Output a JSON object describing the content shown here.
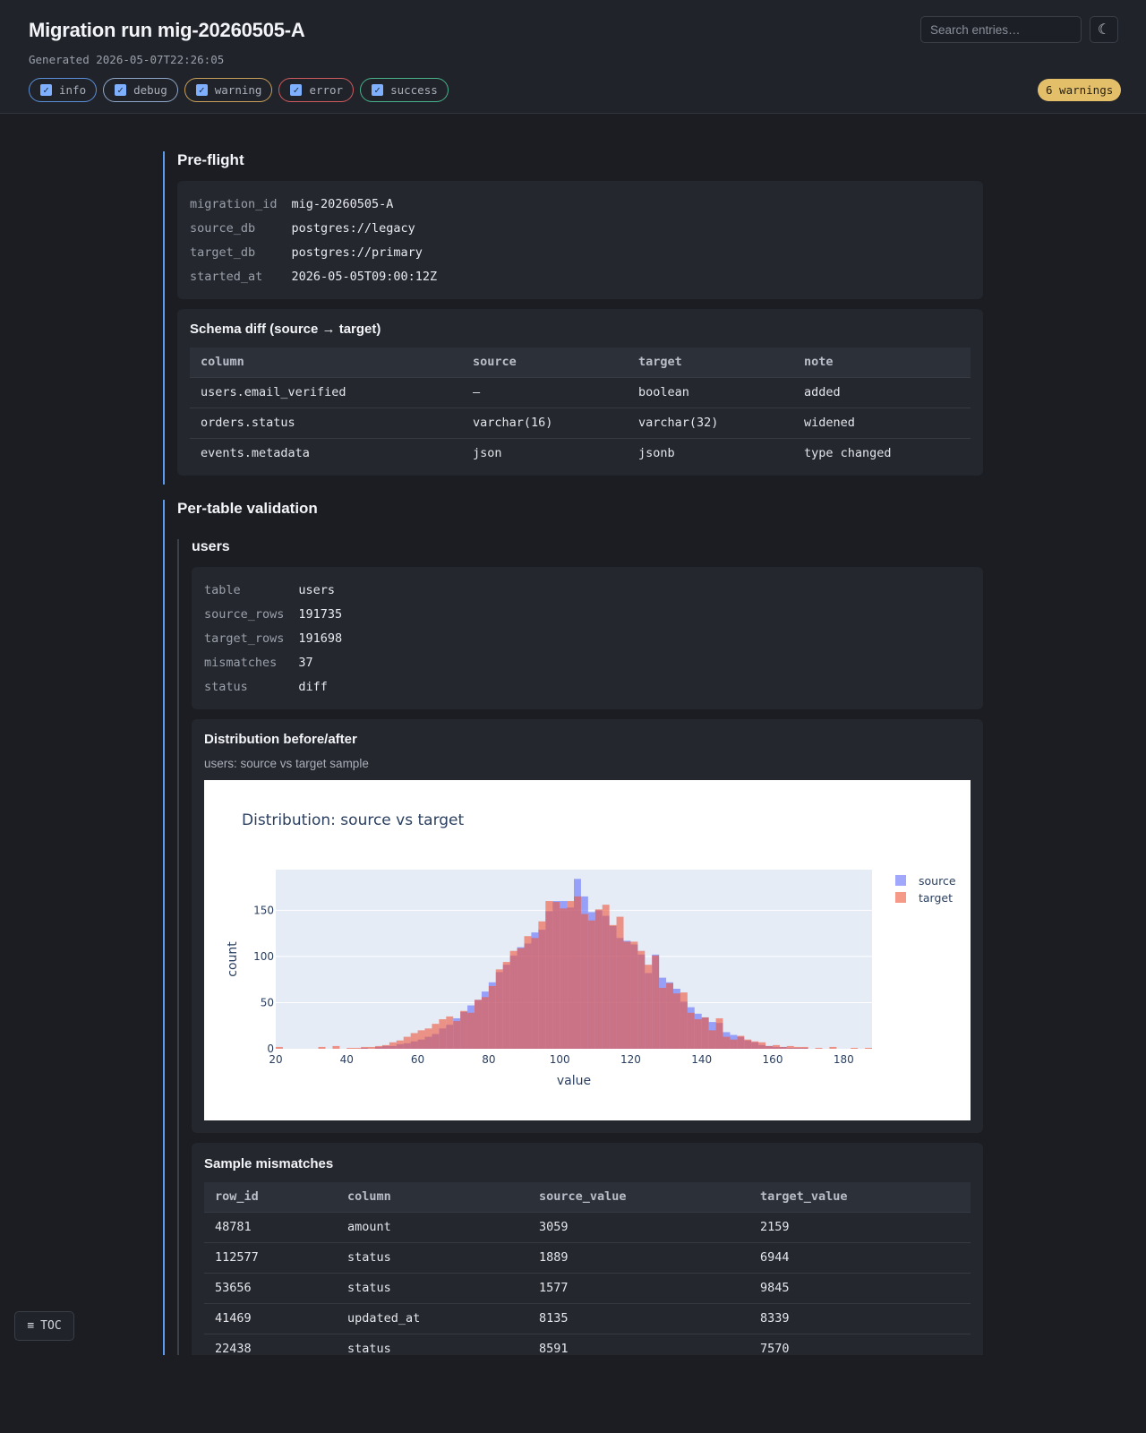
{
  "header": {
    "title": "Migration run mig-20260505-A",
    "generated": "Generated 2026-05-07T22:26:05",
    "search_placeholder": "Search entries…",
    "theme_toggle": "☾",
    "warnings_badge": "6 warnings",
    "filters": [
      {
        "label": "info",
        "checked": true,
        "color": "#5b8fd8"
      },
      {
        "label": "debug",
        "checked": true,
        "color": "#8fa7c9"
      },
      {
        "label": "warning",
        "checked": true,
        "color": "#c8a05a"
      },
      {
        "label": "error",
        "checked": true,
        "color": "#d05a5e"
      },
      {
        "label": "success",
        "checked": true,
        "color": "#49b28a"
      }
    ]
  },
  "preflight": {
    "title": "Pre-flight",
    "kv": [
      {
        "k": "migration_id",
        "v": "mig-20260505-A"
      },
      {
        "k": "source_db",
        "v": "postgres://legacy"
      },
      {
        "k": "target_db",
        "v": "postgres://primary"
      },
      {
        "k": "started_at",
        "v": "2026-05-05T09:00:12Z"
      }
    ],
    "schema_diff": {
      "title": "Schema diff (source → target)",
      "headers": [
        "column",
        "source",
        "target",
        "note"
      ],
      "rows": [
        [
          "users.email_verified",
          "—",
          "boolean",
          "added"
        ],
        [
          "orders.status",
          "varchar(16)",
          "varchar(32)",
          "widened"
        ],
        [
          "events.metadata",
          "json",
          "jsonb",
          "type changed"
        ]
      ]
    }
  },
  "validation": {
    "title": "Per-table validation",
    "users": {
      "title": "users",
      "kv": [
        {
          "k": "table",
          "v": "users"
        },
        {
          "k": "source_rows",
          "v": "191735"
        },
        {
          "k": "target_rows",
          "v": "191698"
        },
        {
          "k": "mismatches",
          "v": "37"
        },
        {
          "k": "status",
          "v": "diff"
        }
      ],
      "distribution": {
        "title": "Distribution before/after",
        "caption": "users: source vs target sample"
      },
      "mismatches": {
        "title": "Sample mismatches",
        "headers": [
          "row_id",
          "column",
          "source_value",
          "target_value"
        ],
        "rows": [
          [
            "48781",
            "amount",
            "3059",
            "2159"
          ],
          [
            "112577",
            "status",
            "1889",
            "6944"
          ],
          [
            "53656",
            "status",
            "1577",
            "9845"
          ],
          [
            "41469",
            "updated_at",
            "8135",
            "8339"
          ],
          [
            "22438",
            "status",
            "8591",
            "7570"
          ]
        ]
      }
    }
  },
  "toc": {
    "label": "TOC",
    "icon": "≡"
  },
  "chart_data": {
    "type": "bar",
    "title": "Distribution: source vs target",
    "xlabel": "value",
    "ylabel": "count",
    "xlim": [
      20,
      188
    ],
    "ylim": [
      0,
      194
    ],
    "xticks": [
      20,
      40,
      60,
      80,
      100,
      120,
      140,
      160,
      180
    ],
    "yticks": [
      0,
      50,
      100,
      150
    ],
    "bin_start": 20,
    "bin_width": 2,
    "legend_position": "top-right",
    "grid": true,
    "series": [
      {
        "name": "source",
        "color": "#636efa",
        "values": [
          0,
          0,
          0,
          0,
          0,
          0,
          0,
          0,
          0,
          0,
          0,
          0,
          1,
          0,
          2,
          3,
          3,
          5,
          6,
          8,
          10,
          13,
          16,
          22,
          26,
          33,
          40,
          47,
          53,
          62,
          72,
          83,
          91,
          101,
          110,
          114,
          126,
          129,
          149,
          160,
          160,
          153,
          184,
          165,
          148,
          150,
          144,
          133,
          120,
          117,
          113,
          102,
          82,
          102,
          77,
          72,
          65,
          51,
          45,
          38,
          34,
          29,
          28,
          18,
          15,
          13,
          9,
          7,
          4,
          3,
          2,
          2,
          1,
          1,
          1,
          0,
          0,
          0,
          0,
          0,
          0,
          0,
          0,
          0
        ]
      },
      {
        "name": "target",
        "color": "#ef553b",
        "values": [
          2,
          0,
          0,
          0,
          0,
          0,
          2,
          0,
          3,
          0,
          1,
          1,
          2,
          2,
          3,
          4,
          7,
          9,
          13,
          17,
          20,
          22,
          27,
          32,
          35,
          30,
          41,
          39,
          53,
          56,
          68,
          86,
          94,
          106,
          109,
          122,
          120,
          138,
          160,
          159,
          152,
          160,
          165,
          146,
          139,
          151,
          156,
          134,
          143,
          116,
          116,
          106,
          91,
          101,
          66,
          71,
          60,
          61,
          39,
          32,
          34,
          20,
          33,
          13,
          10,
          14,
          10,
          8,
          7,
          3,
          4,
          2,
          3,
          2,
          2,
          0,
          1,
          0,
          2,
          0,
          0,
          1,
          0,
          1
        ]
      }
    ]
  }
}
